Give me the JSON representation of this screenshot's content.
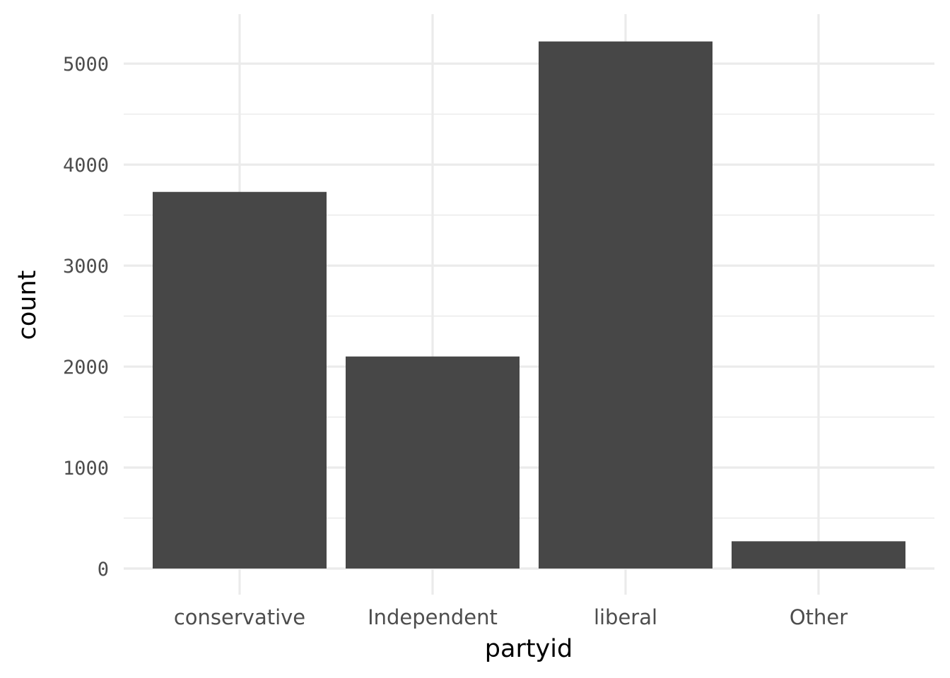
{
  "chart_data": {
    "type": "bar",
    "xlabel": "partyid",
    "ylabel": "count",
    "categories": [
      "conservative",
      "Independent",
      "liberal",
      "Other"
    ],
    "values": [
      3730,
      2100,
      5220,
      270
    ],
    "ylim": [
      0,
      5400
    ],
    "yticks": [
      0,
      1000,
      2000,
      3000,
      4000,
      5000
    ],
    "grid": true,
    "legend": "none",
    "colors": {
      "bar": "#474747",
      "grid": "#ebebeb",
      "tick_text": "#4d4d4d",
      "background": "#ffffff"
    }
  }
}
